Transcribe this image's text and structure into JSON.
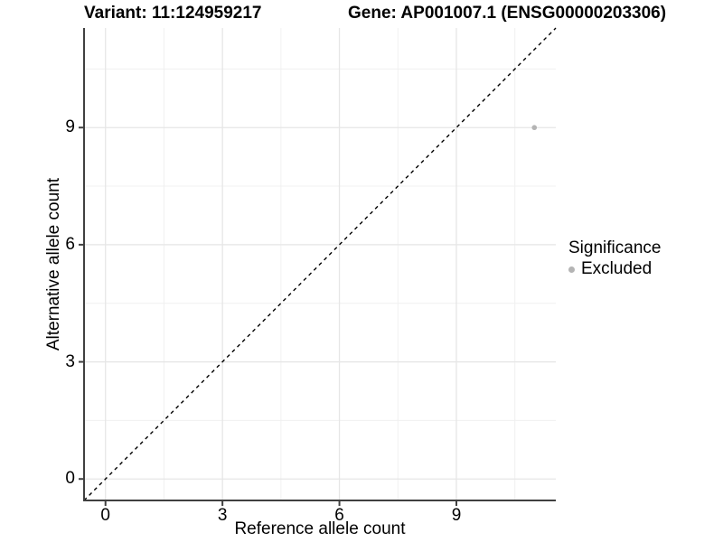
{
  "chart_data": {
    "type": "scatter",
    "titles": {
      "left": "Variant: 11:124959217",
      "right": "Gene: AP001007.1 (ENSG00000203306)"
    },
    "xlabel": "Reference allele count",
    "ylabel": "Alternative allele count",
    "xlim": [
      -0.55,
      11.55
    ],
    "ylim": [
      -0.55,
      11.55
    ],
    "xticks": [
      0,
      3,
      6,
      9
    ],
    "yticks": [
      0,
      3,
      6,
      9
    ],
    "x_minor_ticks": [
      1.5,
      4.5,
      7.5,
      10.5
    ],
    "y_minor_ticks": [
      1.5,
      4.5,
      7.5,
      10.5
    ],
    "grid": "major+minor",
    "identity_line": {
      "type": "abline",
      "slope": 1,
      "intercept": 0,
      "style": "dashed"
    },
    "points": [
      {
        "x": 11,
        "y": 9,
        "series": "Excluded"
      }
    ],
    "legend": {
      "title": "Significance",
      "position": "right",
      "items": [
        {
          "label": "Excluded",
          "marker": "circle",
          "color": "#b4b4b4"
        }
      ]
    },
    "style": {
      "point_color": "#b4b4b4",
      "point_radius": 2.8,
      "grid_major_color": "#e6e6e6",
      "grid_minor_color": "#f0f0f0",
      "axis_color": "#404040",
      "identity_color": "#000000",
      "background": "#ffffff"
    }
  }
}
